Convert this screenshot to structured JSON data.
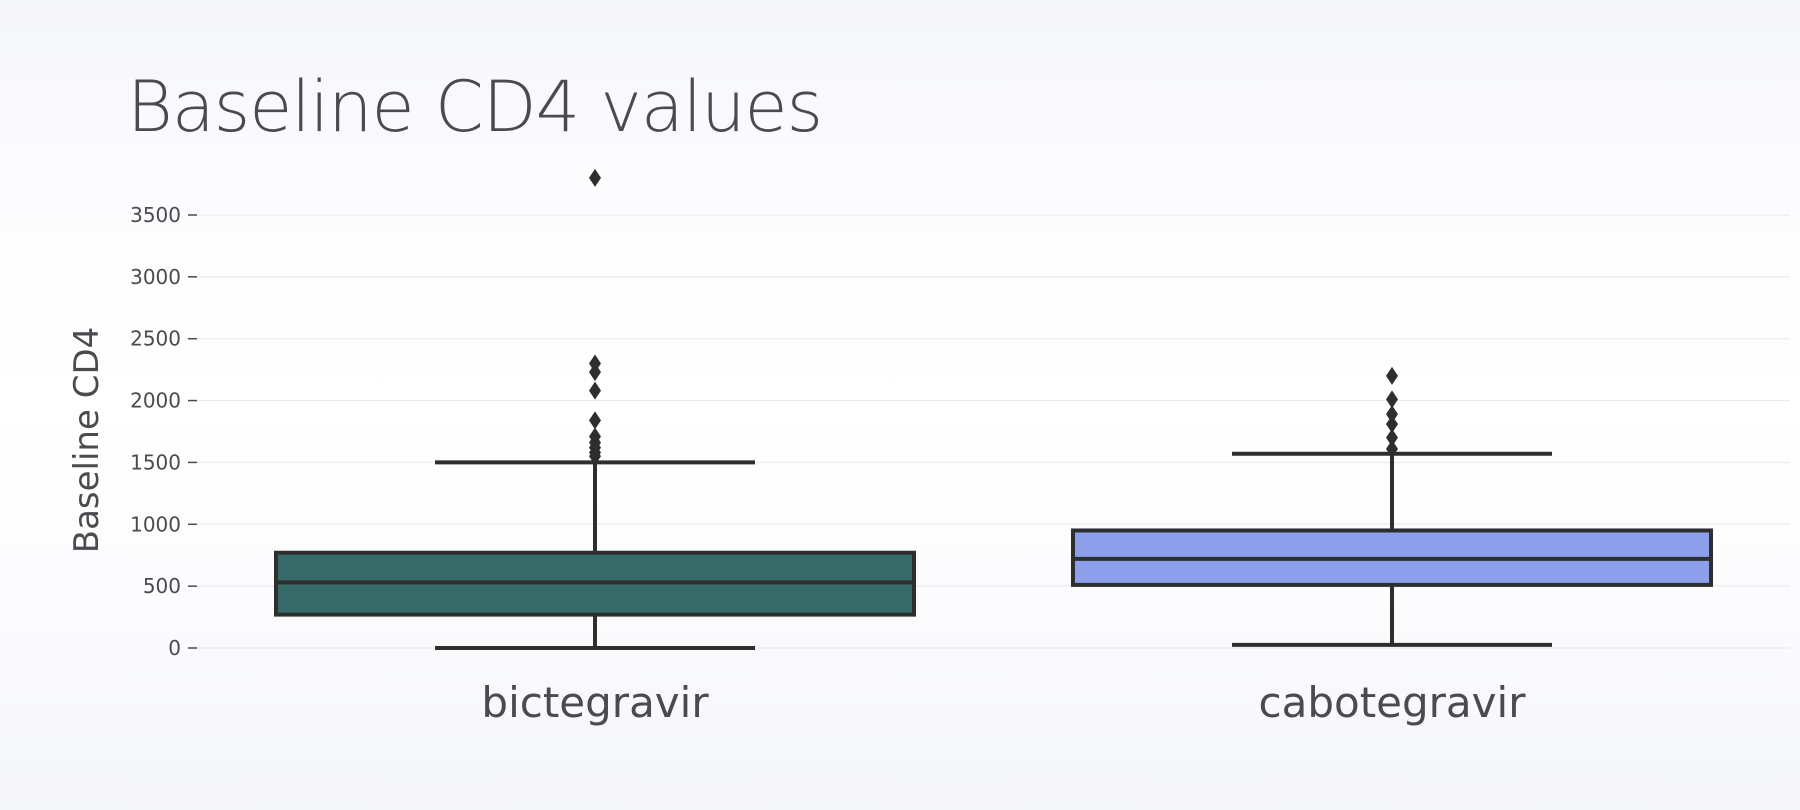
{
  "chart_data": {
    "type": "box",
    "title": "Baseline CD4 values",
    "xlabel": "",
    "ylabel": "Baseline CD4",
    "ylim": [
      -150,
      3950
    ],
    "yticks": [
      0,
      500,
      1000,
      1500,
      2000,
      2500,
      3000,
      3500
    ],
    "grid": true,
    "categories": [
      "bictegravir",
      "cabotegravir"
    ],
    "series": [
      {
        "category": "bictegravir",
        "color": "#356a68",
        "whisker_low": 0,
        "q1": 270,
        "median": 530,
        "q3": 770,
        "whisker_high": 1500,
        "outliers": [
          3800,
          2300,
          2230,
          2080,
          1840,
          1710,
          1660,
          1620,
          1580,
          1550
        ]
      },
      {
        "category": "cabotegravir",
        "color": "#8b9fea",
        "whisker_low": 25,
        "q1": 510,
        "median": 720,
        "q3": 950,
        "whisker_high": 1570,
        "outliers": [
          2200,
          2010,
          1890,
          1810,
          1700,
          1610
        ]
      }
    ]
  }
}
